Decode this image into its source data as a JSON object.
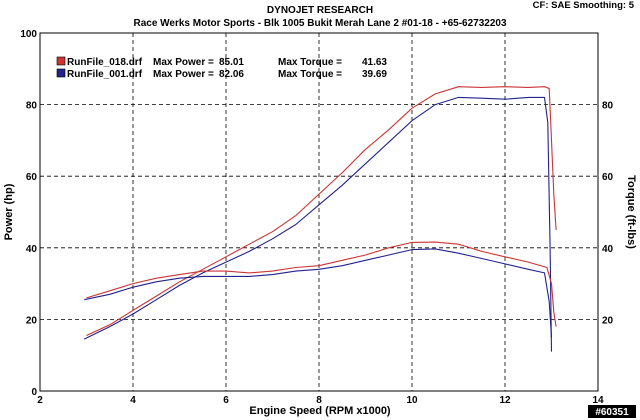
{
  "header": {
    "title": "DYNOJET RESEARCH",
    "subtitle": "Race Werks Motor Sports - Blk 1005 Bukit Merah Lane 2 #01-18 - +65-62732203",
    "settings": "CF: SAE  Smoothing: 5"
  },
  "watermark": "#60351",
  "chart_data": {
    "type": "line",
    "title": "DYNOJET RESEARCH",
    "xlabel": "Engine Speed (RPM x1000)",
    "ylabel": "Power (hp)",
    "y2label": "Torque (ft-lbs)",
    "xlim": [
      2,
      14
    ],
    "ylim": [
      0,
      100
    ],
    "y2lim": [
      0,
      100
    ],
    "xticks": [
      2,
      4,
      6,
      8,
      10,
      12,
      14
    ],
    "yticks": [
      0,
      20,
      40,
      60,
      80,
      100
    ],
    "y2ticks": [
      20,
      40,
      60,
      80
    ],
    "grid": true,
    "legend_position": "top-left",
    "colors": {
      "run018": "#cc3333",
      "run001": "#22228c",
      "grid": "#000000"
    },
    "legend": [
      {
        "file": "RunFile_018.drf",
        "max_power_label": "Max Power =",
        "max_power": "85.01",
        "max_torque_label": "Max Torque =",
        "max_torque": "41.63",
        "color": "#cc3333"
      },
      {
        "file": "RunFile_001.drf",
        "max_power_label": "Max Power =",
        "max_power": "82.06",
        "max_torque_label": "Max Torque =",
        "max_torque": "39.69",
        "color": "#22228c"
      }
    ],
    "series": [
      {
        "name": "RunFile_018.drf",
        "measure": "power",
        "color": "#cc3333",
        "x": [
          3.0,
          3.5,
          4.0,
          4.5,
          5.0,
          5.5,
          6.0,
          6.5,
          7.0,
          7.5,
          8.0,
          8.5,
          9.0,
          9.5,
          10.0,
          10.5,
          11.0,
          11.5,
          12.0,
          12.5,
          12.85,
          12.95,
          13.0,
          13.05,
          13.1
        ],
        "values": [
          15.5,
          18.5,
          22.5,
          26.5,
          30.5,
          34.0,
          37.5,
          41.0,
          44.5,
          49.0,
          55.0,
          61.0,
          67.5,
          73.0,
          79.0,
          83.0,
          85.0,
          84.8,
          85.0,
          84.8,
          85.0,
          84.5,
          70.0,
          55.0,
          45.0
        ]
      },
      {
        "name": "RunFile_001.drf",
        "measure": "power",
        "color": "#22228c",
        "x": [
          2.95,
          3.5,
          4.0,
          4.5,
          5.0,
          5.5,
          6.0,
          6.5,
          7.0,
          7.5,
          8.0,
          8.5,
          9.0,
          9.5,
          10.0,
          10.5,
          11.0,
          11.5,
          12.0,
          12.5,
          12.85,
          12.92,
          12.97,
          13.0
        ],
        "values": [
          14.5,
          18.0,
          21.5,
          25.5,
          29.5,
          33.0,
          36.0,
          39.0,
          42.5,
          46.5,
          52.0,
          57.5,
          63.5,
          69.5,
          75.5,
          80.0,
          82.0,
          81.8,
          81.5,
          82.0,
          82.0,
          75.0,
          40.0,
          11.0
        ]
      },
      {
        "name": "RunFile_018.drf",
        "measure": "torque",
        "color": "#cc3333",
        "x": [
          3.0,
          3.5,
          4.0,
          4.5,
          5.0,
          5.5,
          6.0,
          6.5,
          7.0,
          7.5,
          8.0,
          8.5,
          9.0,
          9.5,
          10.0,
          10.5,
          11.0,
          11.5,
          12.0,
          12.5,
          12.9,
          13.0,
          13.05,
          13.1
        ],
        "values": [
          26.0,
          28.0,
          30.0,
          31.5,
          32.5,
          33.5,
          33.5,
          33.0,
          33.5,
          34.5,
          35.0,
          36.5,
          38.0,
          40.0,
          41.5,
          41.6,
          41.0,
          39.0,
          37.5,
          36.0,
          34.5,
          30.0,
          22.0,
          18.0
        ]
      },
      {
        "name": "RunFile_001.drf",
        "measure": "torque",
        "color": "#22228c",
        "x": [
          2.95,
          3.5,
          4.0,
          4.5,
          5.0,
          5.5,
          6.0,
          6.5,
          7.0,
          7.5,
          8.0,
          8.5,
          9.0,
          9.5,
          10.0,
          10.5,
          11.0,
          11.5,
          12.0,
          12.5,
          12.85,
          12.95,
          13.0
        ],
        "values": [
          25.5,
          27.0,
          29.0,
          30.5,
          31.5,
          32.0,
          32.0,
          32.0,
          32.5,
          33.5,
          34.0,
          35.0,
          36.5,
          38.0,
          39.5,
          39.7,
          38.5,
          37.0,
          35.5,
          34.0,
          33.0,
          25.0,
          15.0
        ]
      }
    ]
  }
}
